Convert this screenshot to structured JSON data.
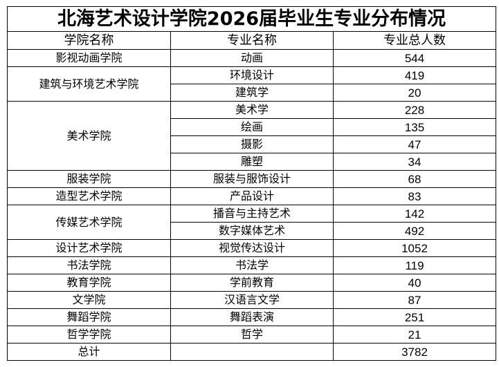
{
  "title": "北海艺术设计学院2026届毕业生专业分布情况",
  "headers": {
    "college": "学院名称",
    "major": "专业名称",
    "count": "专业总人数"
  },
  "colleges": [
    {
      "name": "影视动画学院",
      "majors": [
        {
          "name": "动画",
          "count": "544"
        }
      ]
    },
    {
      "name": "建筑与环境艺术学院",
      "majors": [
        {
          "name": "环境设计",
          "count": "419"
        },
        {
          "name": "建筑学",
          "count": "20"
        }
      ]
    },
    {
      "name": "美术学院",
      "majors": [
        {
          "name": "美术学",
          "count": "228"
        },
        {
          "name": "绘画",
          "count": "135"
        },
        {
          "name": "摄影",
          "count": "47"
        },
        {
          "name": "雕塑",
          "count": "34"
        }
      ]
    },
    {
      "name": "服装学院",
      "majors": [
        {
          "name": "服装与服饰设计",
          "count": "68"
        }
      ]
    },
    {
      "name": "造型艺术学院",
      "majors": [
        {
          "name": "产品设计",
          "count": "83"
        }
      ]
    },
    {
      "name": "传媒艺术学院",
      "majors": [
        {
          "name": "播音与主持艺术",
          "count": "142"
        },
        {
          "name": "数字媒体艺术",
          "count": "492"
        }
      ]
    },
    {
      "name": "设计艺术学院",
      "majors": [
        {
          "name": "视觉传达设计",
          "count": "1052"
        }
      ]
    },
    {
      "name": "书法学院",
      "majors": [
        {
          "name": "书法学",
          "count": "119"
        }
      ]
    },
    {
      "name": "教育学院",
      "majors": [
        {
          "name": "学前教育",
          "count": "40"
        }
      ]
    },
    {
      "name": "文学院",
      "majors": [
        {
          "name": "汉语言文学",
          "count": "87"
        }
      ]
    },
    {
      "name": "舞蹈学院",
      "majors": [
        {
          "name": "舞蹈表演",
          "count": "251"
        }
      ]
    },
    {
      "name": "哲学学院",
      "majors": [
        {
          "name": "哲学",
          "count": "21"
        }
      ]
    }
  ],
  "total": {
    "label": "总计",
    "major": "",
    "count": "3782"
  }
}
